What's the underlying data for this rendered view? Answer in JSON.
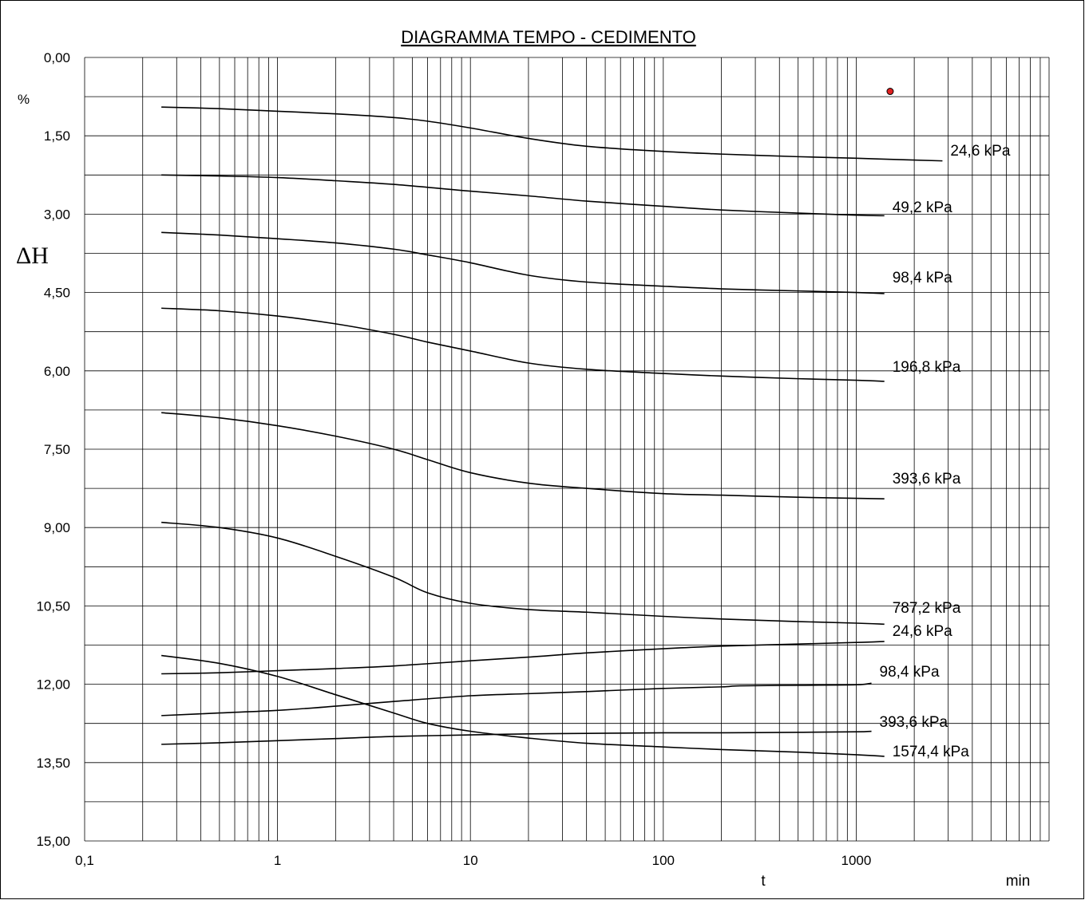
{
  "chart_data": {
    "type": "line",
    "title": "DIAGRAMMA  TEMPO - CEDIMENTO",
    "xlabel": "t",
    "xunit": "min",
    "ylabel": "ΔH",
    "yunit": "%",
    "x_scale": "log",
    "xlim": [
      0.1,
      10000
    ],
    "ylim": [
      0,
      15
    ],
    "y_inverted": true,
    "grid": true,
    "x_tick_labels": [
      "0,1",
      "1",
      "10",
      "100",
      "1000"
    ],
    "x_ticks": [
      0.1,
      1,
      10,
      100,
      1000
    ],
    "y_tick_labels": [
      "0,00",
      "1,50",
      "3,00",
      "4,50",
      "6,00",
      "7,50",
      "9,00",
      "10,50",
      "12,00",
      "13,50",
      "15,00"
    ],
    "y_ticks": [
      0,
      1.5,
      3,
      4.5,
      6,
      7.5,
      9,
      10.5,
      12,
      13.5,
      15
    ],
    "marker_point": {
      "x": 1500,
      "y": 0.65,
      "color": "#e02020"
    },
    "series": [
      {
        "name": "24,6 kPa",
        "x": [
          0.25,
          0.5,
          1,
          2,
          4,
          6,
          10,
          20,
          40,
          100,
          200,
          500,
          1000,
          1500,
          2800
        ],
        "y": [
          0.95,
          0.98,
          1.03,
          1.08,
          1.15,
          1.22,
          1.35,
          1.55,
          1.7,
          1.8,
          1.85,
          1.9,
          1.93,
          1.95,
          1.98
        ]
      },
      {
        "name": "49,2 kPa",
        "x": [
          0.25,
          0.5,
          1,
          2,
          4,
          10,
          20,
          40,
          100,
          200,
          500,
          1000,
          1400
        ],
        "y": [
          2.25,
          2.27,
          2.3,
          2.36,
          2.43,
          2.56,
          2.65,
          2.75,
          2.85,
          2.92,
          2.98,
          3.02,
          3.03
        ]
      },
      {
        "name": "98,4 kPa",
        "x": [
          0.25,
          0.5,
          1,
          2,
          4,
          6,
          10,
          20,
          40,
          100,
          200,
          500,
          1000,
          1400
        ],
        "y": [
          3.35,
          3.4,
          3.47,
          3.55,
          3.67,
          3.78,
          3.93,
          4.17,
          4.3,
          4.38,
          4.43,
          4.47,
          4.5,
          4.52
        ]
      },
      {
        "name": "196,8 kPa",
        "x": [
          0.25,
          0.5,
          1,
          2,
          4,
          6,
          10,
          20,
          40,
          100,
          200,
          500,
          1000,
          1400
        ],
        "y": [
          4.8,
          4.85,
          4.95,
          5.1,
          5.3,
          5.45,
          5.62,
          5.85,
          5.97,
          6.05,
          6.1,
          6.15,
          6.18,
          6.2
        ]
      },
      {
        "name": "393,6 kPa",
        "x": [
          0.25,
          0.5,
          1,
          2,
          4,
          6,
          10,
          20,
          40,
          100,
          200,
          500,
          1000,
          1400
        ],
        "y": [
          6.8,
          6.9,
          7.05,
          7.25,
          7.5,
          7.7,
          7.95,
          8.15,
          8.25,
          8.35,
          8.38,
          8.42,
          8.44,
          8.45
        ]
      },
      {
        "name": "787,2 kPa",
        "x": [
          0.25,
          0.5,
          1,
          2,
          4,
          6,
          10,
          20,
          40,
          100,
          200,
          500,
          1000,
          1400
        ],
        "y": [
          8.9,
          9.0,
          9.2,
          9.55,
          9.95,
          10.25,
          10.45,
          10.57,
          10.62,
          10.7,
          10.75,
          10.8,
          10.83,
          10.85
        ]
      },
      {
        "name": "24,6 kPa",
        "x": [
          0.25,
          0.5,
          1,
          2,
          4,
          10,
          20,
          40,
          100,
          200,
          500,
          1000,
          1400
        ],
        "y": [
          11.8,
          11.78,
          11.74,
          11.7,
          11.65,
          11.55,
          11.48,
          11.4,
          11.32,
          11.27,
          11.23,
          11.2,
          11.18
        ]
      },
      {
        "name": "98,4 kPa",
        "x": [
          0.25,
          0.5,
          1,
          2,
          4,
          10,
          20,
          40,
          100,
          200,
          250,
          500,
          1000,
          1200
        ],
        "y": [
          12.6,
          12.55,
          12.5,
          12.42,
          12.33,
          12.22,
          12.18,
          12.14,
          12.08,
          12.05,
          12.03,
          12.02,
          12.01,
          11.98
        ]
      },
      {
        "name": "393,6 kPa",
        "x": [
          0.25,
          0.5,
          1,
          2,
          4,
          10,
          20,
          40,
          100,
          200,
          500,
          1000,
          1200
        ],
        "y": [
          13.15,
          13.12,
          13.08,
          13.04,
          13.0,
          12.97,
          12.95,
          12.94,
          12.93,
          12.93,
          12.92,
          12.91,
          12.9
        ]
      },
      {
        "name": "1574,4 kPa",
        "x": [
          0.25,
          0.5,
          1,
          2,
          4,
          6,
          10,
          20,
          40,
          100,
          200,
          500,
          1000,
          1400
        ],
        "y": [
          11.45,
          11.6,
          11.85,
          12.2,
          12.55,
          12.75,
          12.9,
          13.03,
          13.13,
          13.2,
          13.25,
          13.3,
          13.35,
          13.38
        ]
      }
    ]
  }
}
